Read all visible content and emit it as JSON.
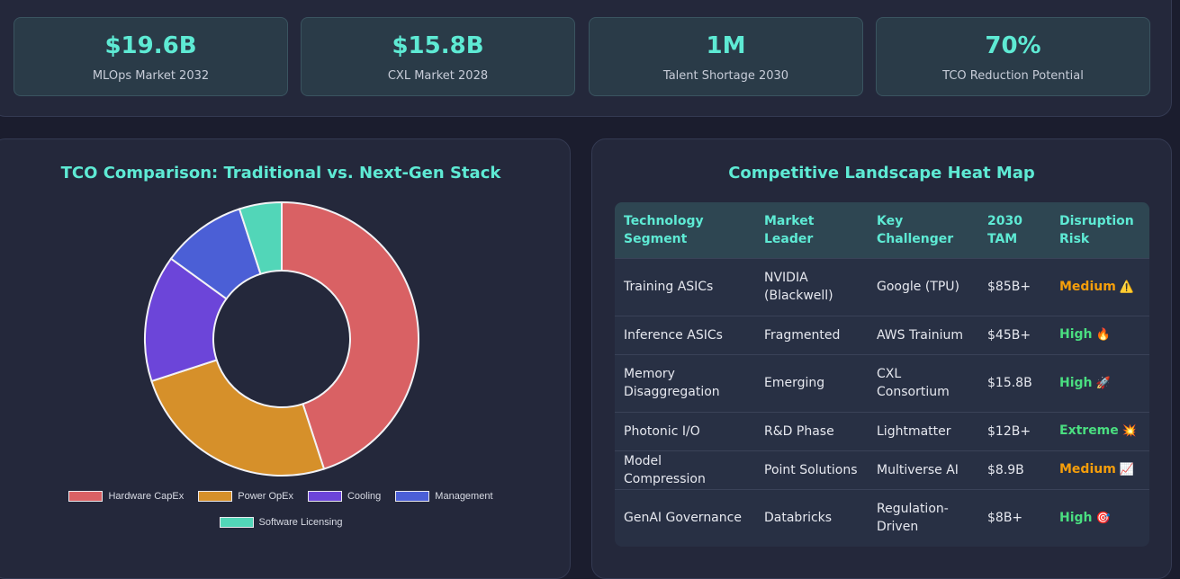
{
  "stats": [
    {
      "value": "$19.6B",
      "label": "MLOps Market 2032"
    },
    {
      "value": "$15.8B",
      "label": "CXL Market 2028"
    },
    {
      "value": "1M",
      "label": "Talent Shortage 2030"
    },
    {
      "value": "70%",
      "label": "TCO Reduction Potential"
    }
  ],
  "tco": {
    "title": "TCO Comparison: Traditional vs. Next-Gen Stack",
    "legend": [
      "Hardware CapEx",
      "Power OpEx",
      "Cooling",
      "Management",
      "Software Licensing"
    ]
  },
  "chart_data": {
    "type": "pie",
    "title": "TCO Comparison: Traditional vs. Next-Gen Stack",
    "categories": [
      "Hardware CapEx",
      "Power OpEx",
      "Cooling",
      "Management",
      "Software Licensing"
    ],
    "values": [
      45,
      25,
      15,
      10,
      5
    ],
    "colors": [
      "#d96164",
      "#d6902a",
      "#6c45d9",
      "#4b5fd6",
      "#52d6b8"
    ],
    "legend": "bottom"
  },
  "heatmap": {
    "title": "Competitive Landscape Heat Map",
    "headers": [
      "Technology Segment",
      "Market Leader",
      "Key Challenger",
      "2030 TAM",
      "Disruption Risk"
    ],
    "rows": [
      {
        "segment": "Training ASICs",
        "leader": "NVIDIA (Blackwell)",
        "challenger": "Google (TPU)",
        "tam": "$85B+",
        "risk": "Medium",
        "risk_icon": "⚠️"
      },
      {
        "segment": "Inference ASICs",
        "leader": "Fragmented",
        "challenger": "AWS Trainium",
        "tam": "$45B+",
        "risk": "High",
        "risk_icon": "🔥"
      },
      {
        "segment": "Memory Disaggregation",
        "leader": "Emerging",
        "challenger": "CXL Consortium",
        "tam": "$15.8B",
        "risk": "High",
        "risk_icon": "🚀"
      },
      {
        "segment": "Photonic I/O",
        "leader": "R&D Phase",
        "challenger": "Lightmatter",
        "tam": "$12B+",
        "risk": "Extreme",
        "risk_icon": "💥"
      },
      {
        "segment": "Model Compression",
        "leader": "Point Solutions",
        "challenger": "Multiverse AI",
        "tam": "$8.9B",
        "risk": "Medium",
        "risk_icon": "📈"
      },
      {
        "segment": "GenAI Governance",
        "leader": "Databricks",
        "challenger": "Regulation-Driven",
        "tam": "$8B+",
        "risk": "High",
        "risk_icon": "🎯"
      }
    ]
  }
}
